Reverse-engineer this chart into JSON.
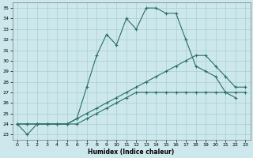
{
  "xlabel": "Humidex (Indice chaleur)",
  "bg_color": "#cce8ec",
  "grid_color": "#aacdd2",
  "line_color": "#2a6e68",
  "xlim": [
    -0.5,
    23.5
  ],
  "ylim": [
    22.5,
    35.5
  ],
  "xticks": [
    0,
    1,
    2,
    3,
    4,
    5,
    6,
    7,
    8,
    9,
    10,
    11,
    12,
    13,
    14,
    15,
    16,
    17,
    18,
    19,
    20,
    21,
    22,
    23
  ],
  "yticks": [
    23,
    24,
    25,
    26,
    27,
    28,
    29,
    30,
    31,
    32,
    33,
    34,
    35
  ],
  "series": [
    {
      "x": [
        0,
        1,
        2,
        3,
        4,
        5,
        6,
        7,
        8,
        9,
        10,
        11,
        12,
        13,
        14,
        15,
        16,
        17,
        18,
        19,
        20,
        21,
        22
      ],
      "y": [
        24,
        23,
        24,
        24,
        24,
        24,
        24.5,
        27.5,
        30.5,
        32.5,
        31.5,
        34.0,
        33.0,
        35.0,
        35.0,
        34.5,
        34.5,
        32.0,
        29.5,
        29.0,
        28.5,
        27.0,
        26.5
      ]
    },
    {
      "x": [
        0,
        1,
        2,
        3,
        4,
        5,
        6,
        7,
        8,
        9,
        10,
        11,
        12,
        13,
        14,
        15,
        16,
        17,
        18,
        19,
        20,
        21,
        22,
        23
      ],
      "y": [
        24,
        24,
        24,
        24,
        24,
        24,
        24.5,
        25.0,
        25.5,
        26.0,
        26.5,
        27.0,
        27.5,
        28.0,
        28.5,
        29.0,
        29.5,
        30.0,
        30.5,
        30.5,
        29.5,
        28.5,
        27.5,
        27.5
      ]
    },
    {
      "x": [
        0,
        1,
        2,
        3,
        4,
        5,
        6,
        7,
        8,
        9,
        10,
        11,
        12,
        13,
        14,
        15,
        16,
        17,
        18,
        19,
        20,
        21,
        22,
        23
      ],
      "y": [
        24,
        24,
        24,
        24,
        24,
        24,
        24.0,
        24.5,
        25.0,
        25.5,
        26.0,
        26.5,
        27.0,
        27.0,
        27.0,
        27.0,
        27.0,
        27.0,
        27.0,
        27.0,
        27.0,
        27.0,
        27.0,
        27.0
      ]
    }
  ]
}
